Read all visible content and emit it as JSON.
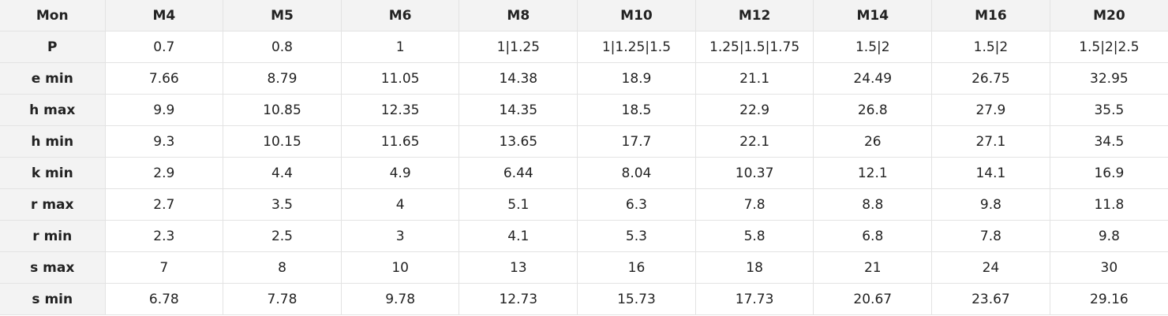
{
  "table": {
    "header": [
      "Mon",
      "M4",
      "M5",
      "M6",
      "M8",
      "M10",
      "M12",
      "M14",
      "M16",
      "M20"
    ],
    "rows": [
      [
        "P",
        "0.7",
        "0.8",
        "1",
        "1|1.25",
        "1|1.25|1.5",
        "1.25|1.5|1.75",
        "1.5|2",
        "1.5|2",
        "1.5|2|2.5"
      ],
      [
        "e min",
        "7.66",
        "8.79",
        "11.05",
        "14.38",
        "18.9",
        "21.1",
        "24.49",
        "26.75",
        "32.95"
      ],
      [
        "h max",
        "9.9",
        "10.85",
        "12.35",
        "14.35",
        "18.5",
        "22.9",
        "26.8",
        "27.9",
        "35.5"
      ],
      [
        "h min",
        "9.3",
        "10.15",
        "11.65",
        "13.65",
        "17.7",
        "22.1",
        "26",
        "27.1",
        "34.5"
      ],
      [
        "k min",
        "2.9",
        "4.4",
        "4.9",
        "6.44",
        "8.04",
        "10.37",
        "12.1",
        "14.1",
        "16.9"
      ],
      [
        "r max",
        "2.7",
        "3.5",
        "4",
        "5.1",
        "6.3",
        "7.8",
        "8.8",
        "9.8",
        "11.8"
      ],
      [
        "r min",
        "2.3",
        "2.5",
        "3",
        "4.1",
        "5.3",
        "5.8",
        "6.8",
        "7.8",
        "9.8"
      ],
      [
        "s max",
        "7",
        "8",
        "10",
        "13",
        "16",
        "18",
        "21",
        "24",
        "30"
      ],
      [
        "s min",
        "6.78",
        "7.78",
        "9.78",
        "12.73",
        "15.73",
        "17.73",
        "20.67",
        "23.67",
        "29.16"
      ]
    ]
  }
}
